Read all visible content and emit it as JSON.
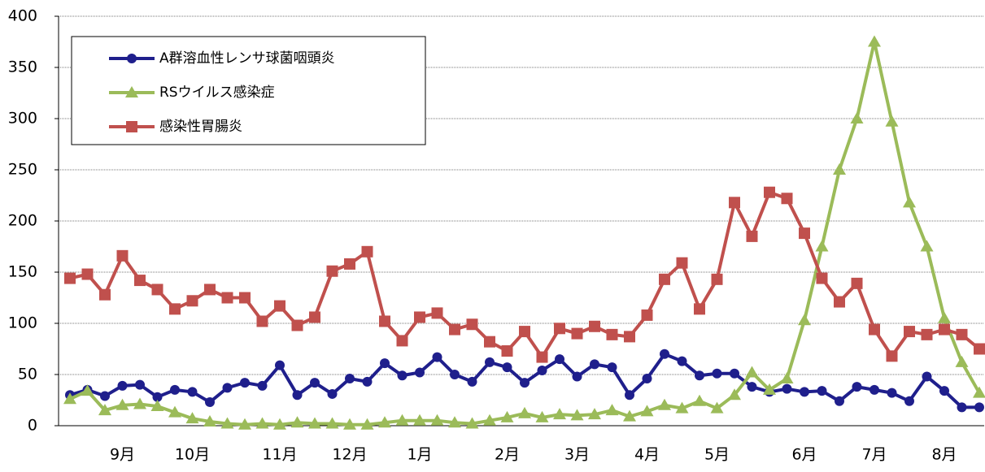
{
  "chart_data": {
    "type": "line",
    "categories": [
      null,
      null,
      null,
      "9月",
      null,
      null,
      null,
      "10月",
      null,
      null,
      null,
      null,
      "11月",
      null,
      null,
      null,
      "12月",
      null,
      null,
      null,
      "1月",
      null,
      null,
      null,
      null,
      "2月",
      null,
      null,
      null,
      "3月",
      null,
      null,
      null,
      "4月",
      null,
      null,
      null,
      "5月",
      null,
      null,
      null,
      null,
      "6月",
      null,
      null,
      null,
      "7月",
      null,
      null,
      null,
      "8月",
      null,
      null
    ],
    "series": [
      {
        "name": "A群溶血性レンサ球菌咽頭炎",
        "color": "#1f1f8c",
        "marker": "circle",
        "values": [
          30,
          35,
          29,
          39,
          40,
          28,
          35,
          33,
          23,
          37,
          42,
          39,
          59,
          30,
          42,
          31,
          46,
          43,
          61,
          49,
          52,
          67,
          50,
          43,
          62,
          57,
          42,
          54,
          65,
          48,
          60,
          57,
          30,
          46,
          70,
          63,
          49,
          51,
          51,
          38,
          33,
          36,
          33,
          34,
          24,
          38,
          35,
          32,
          24,
          48,
          34,
          18,
          18
        ]
      },
      {
        "name": "RSウイルス感染症",
        "color": "#9bbb59",
        "marker": "triangle",
        "values": [
          26,
          34,
          15,
          20,
          21,
          19,
          13,
          7,
          4,
          2,
          1,
          2,
          1,
          3,
          2,
          2,
          1,
          1,
          3,
          5,
          5,
          5,
          3,
          2,
          5,
          8,
          12,
          8,
          11,
          10,
          11,
          15,
          9,
          14,
          20,
          17,
          24,
          17,
          30,
          52,
          35,
          46,
          103,
          175,
          250,
          300,
          375,
          297,
          218,
          175,
          105,
          62,
          32
        ]
      },
      {
        "name": "感染性胃腸炎",
        "color": "#c0504d",
        "marker": "square",
        "values": [
          144,
          148,
          128,
          166,
          142,
          133,
          114,
          122,
          133,
          125,
          125,
          102,
          117,
          98,
          106,
          151,
          158,
          170,
          102,
          83,
          106,
          110,
          94,
          99,
          82,
          73,
          92,
          67,
          95,
          90,
          97,
          89,
          87,
          108,
          143,
          159,
          114,
          143,
          218,
          185,
          228,
          222,
          188,
          144,
          121,
          139,
          94,
          68,
          92,
          89,
          94,
          89,
          75
        ]
      }
    ],
    "ylim": [
      0,
      400
    ],
    "yticks": [
      0,
      50,
      100,
      150,
      200,
      250,
      300,
      350,
      400
    ],
    "grid": true,
    "legend": "upper left"
  }
}
